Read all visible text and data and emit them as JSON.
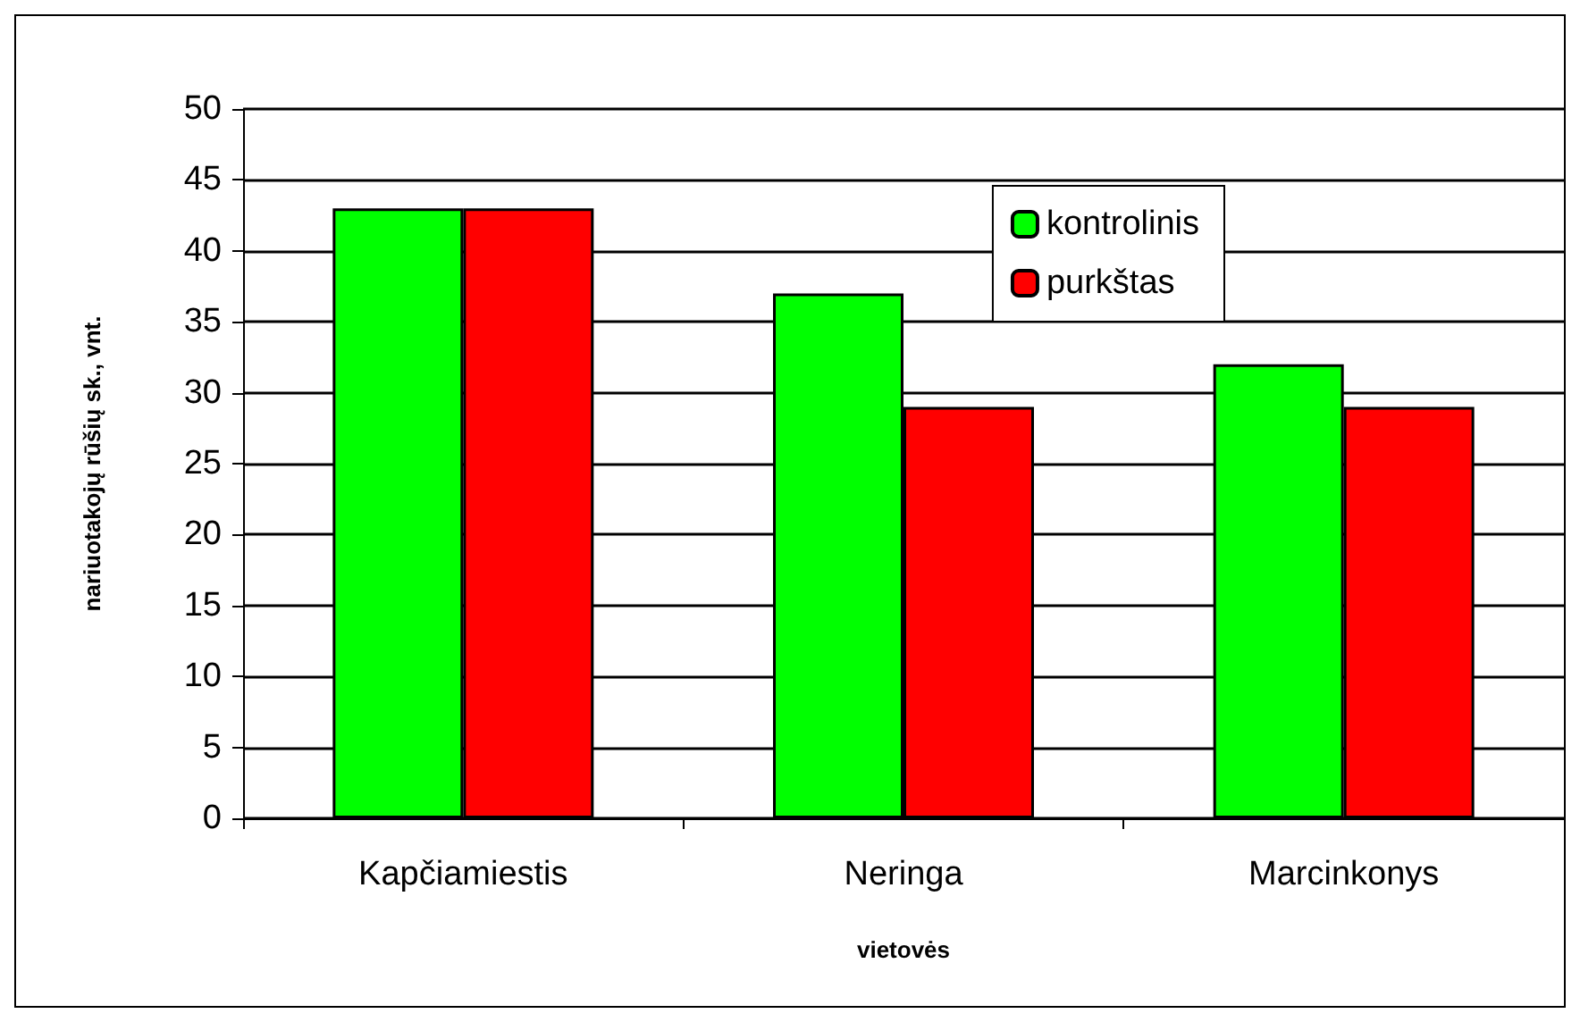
{
  "chart_data": {
    "type": "bar",
    "xlabel": "vietovės",
    "ylabel": "nariuotakojų rūšių sk., vnt.",
    "categories": [
      "Kapčiamiestis",
      "Neringa",
      "Marcinkonys"
    ],
    "series": [
      {
        "name": "kontrolinis",
        "color": "#00ff00",
        "values": [
          43,
          37,
          32
        ]
      },
      {
        "name": "purkštas",
        "color": "#ff0000",
        "values": [
          43,
          29,
          29
        ]
      }
    ],
    "ylim": [
      0,
      50
    ],
    "yticks": [
      0,
      5,
      10,
      15,
      20,
      25,
      30,
      35,
      40,
      45,
      50
    ],
    "grid": "y",
    "legend": "top right"
  }
}
